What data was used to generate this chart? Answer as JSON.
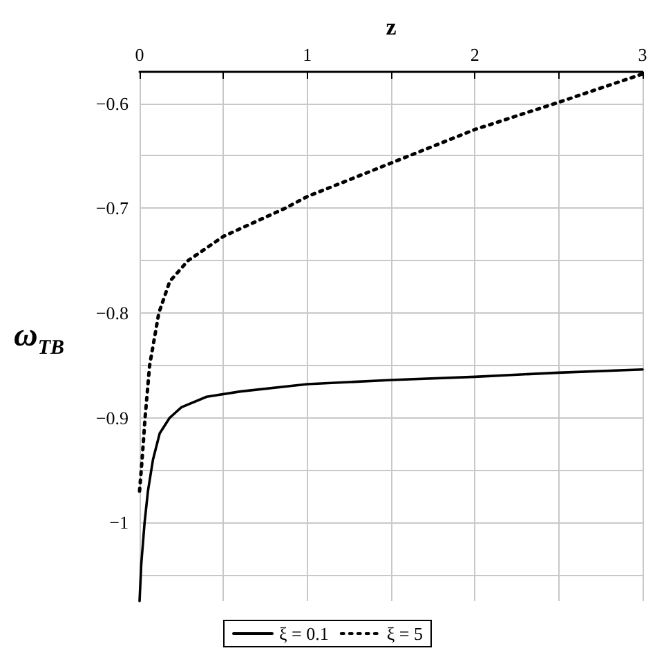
{
  "chart_data": {
    "type": "line",
    "xlabel": "z",
    "ylabel": "ω$_{TB}$",
    "xlim": [
      0,
      3
    ],
    "xticks": [
      0,
      {
        "value": 0.5,
        "label": null
      },
      1,
      {
        "value": 1.5,
        "label": null
      },
      2,
      {
        "value": 2.5,
        "label": null
      },
      3
    ],
    "ylim": [
      -1.075,
      -0.57
    ],
    "yticks": [
      {
        "value": -1.05,
        "label": null
      },
      -1,
      {
        "value": -0.95,
        "label": null
      },
      -0.9,
      {
        "value": -0.85,
        "label": null
      },
      -0.8,
      {
        "value": -0.75,
        "label": null
      },
      -0.7,
      {
        "value": -0.65,
        "label": null
      },
      -0.6
    ],
    "grid": true,
    "legend": "bottom",
    "marker": "none",
    "series": [
      {
        "name": "ξ = 0.1",
        "color": "#000000",
        "line_style": "solid",
        "x": [
          0,
          0.01,
          0.03,
          0.05,
          0.08,
          0.12,
          0.18,
          0.25,
          0.4,
          0.6,
          1,
          1.5,
          2,
          2.5,
          3
        ],
        "values": [
          -1.075,
          -1.04,
          -1.0,
          -0.97,
          -0.94,
          -0.915,
          -0.9,
          -0.89,
          -0.88,
          -0.875,
          -0.868,
          -0.864,
          -0.861,
          -0.857,
          -0.854
        ]
      },
      {
        "name": "ξ = 5",
        "color": "#000000",
        "line_style": "dotted",
        "x": [
          0,
          0.015,
          0.033,
          0.06,
          0.115,
          0.18,
          0.29,
          0.5,
          0.87,
          1,
          1.5,
          2,
          2.5,
          3
        ],
        "values": [
          -0.97,
          -0.94,
          -0.9,
          -0.85,
          -0.8,
          -0.77,
          -0.75,
          -0.727,
          -0.7,
          -0.689,
          -0.657,
          -0.625,
          -0.599,
          -0.572
        ]
      }
    ]
  }
}
